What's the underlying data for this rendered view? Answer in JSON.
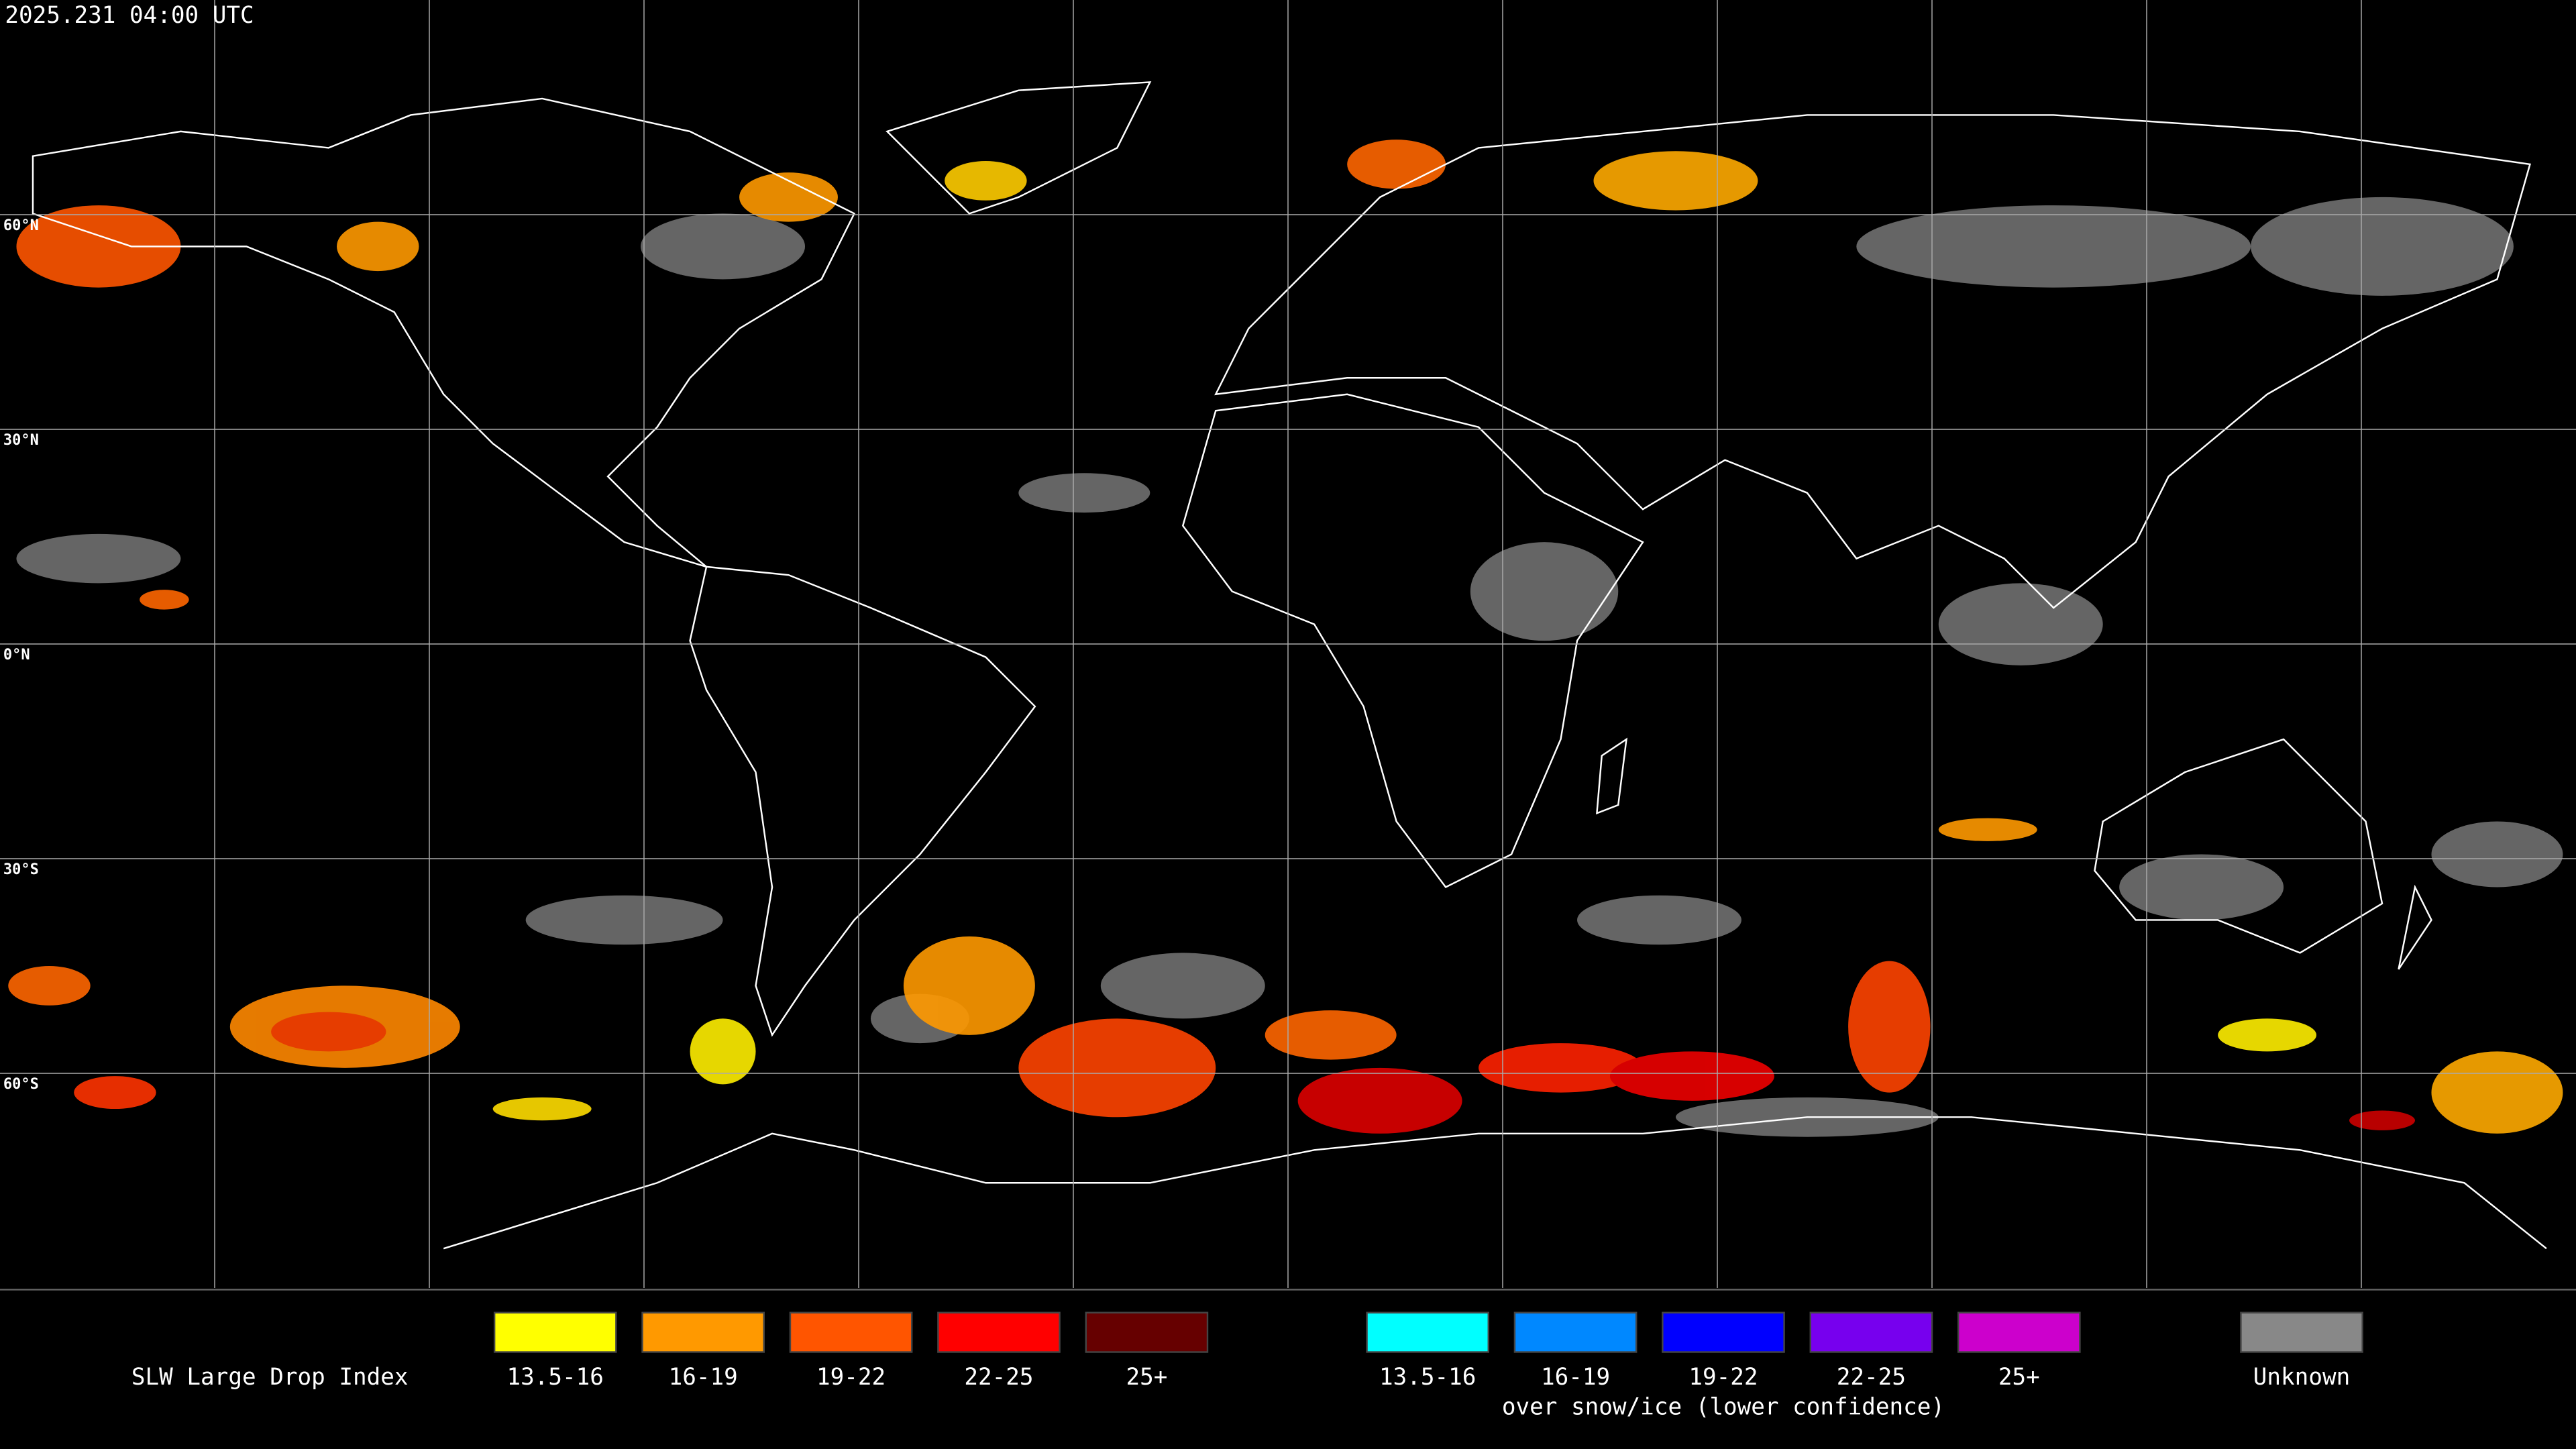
{
  "map": {
    "title": "2025.231 04:00 UTC",
    "lat_labels": [
      "60°N",
      "30°N",
      "0°N",
      "30°S",
      "60°S"
    ]
  },
  "legend": {
    "title": "SLW Large Drop Index",
    "groups": [
      {
        "items": [
          {
            "label": "13.5-16",
            "color": "#ffff00"
          },
          {
            "label": "16-19",
            "color": "#ff9900"
          },
          {
            "label": "19-22",
            "color": "#ff5500"
          },
          {
            "label": "22-25",
            "color": "#ff0000"
          },
          {
            "label": "25+",
            "color": "#660000"
          }
        ]
      },
      {
        "caption": "over snow/ice (lower confidence)",
        "items": [
          {
            "label": "13.5-16",
            "color": "#00ffff"
          },
          {
            "label": "16-19",
            "color": "#0088ff"
          },
          {
            "label": "19-22",
            "color": "#0000ff"
          },
          {
            "label": "22-25",
            "color": "#7700ee"
          },
          {
            "label": "25+",
            "color": "#cc00cc"
          }
        ]
      },
      {
        "items": [
          {
            "label": "Unknown",
            "color": "#888888"
          }
        ]
      }
    ]
  }
}
